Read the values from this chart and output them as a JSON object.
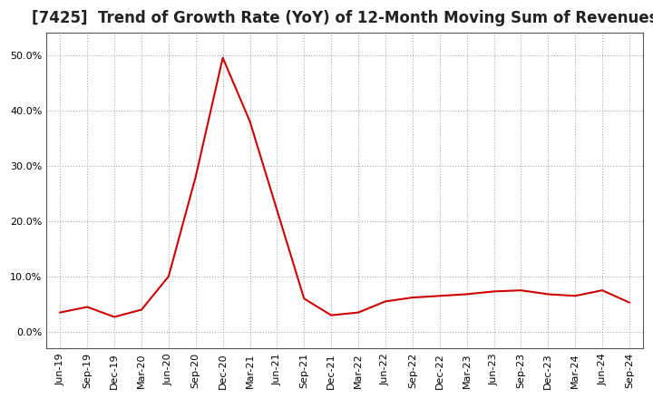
{
  "title": "[7425]  Trend of Growth Rate (YoY) of 12-Month Moving Sum of Revenues",
  "title_fontsize": 12,
  "line_color": "#cc0000",
  "background_color": "#ffffff",
  "grid_color": "#aaaaaa",
  "ylim": [
    -0.03,
    0.54
  ],
  "yticks": [
    0.0,
    0.1,
    0.2,
    0.3,
    0.4,
    0.5
  ],
  "values": [
    0.035,
    0.045,
    0.027,
    0.04,
    0.1,
    0.28,
    0.495,
    0.38,
    0.22,
    0.06,
    0.03,
    0.035,
    0.055,
    0.062,
    0.065,
    0.068,
    0.073,
    0.075,
    0.068,
    0.065,
    0.075,
    0.053
  ],
  "xtick_labels": [
    "Jun-19",
    "Sep-19",
    "Dec-19",
    "Mar-20",
    "Jun-20",
    "Sep-20",
    "Dec-20",
    "Mar-21",
    "Jun-21",
    "Sep-21",
    "Dec-21",
    "Mar-22",
    "Jun-22",
    "Sep-22",
    "Dec-22",
    "Mar-23",
    "Jun-23",
    "Sep-23",
    "Dec-23",
    "Mar-24",
    "Jun-24",
    "Sep-24"
  ]
}
